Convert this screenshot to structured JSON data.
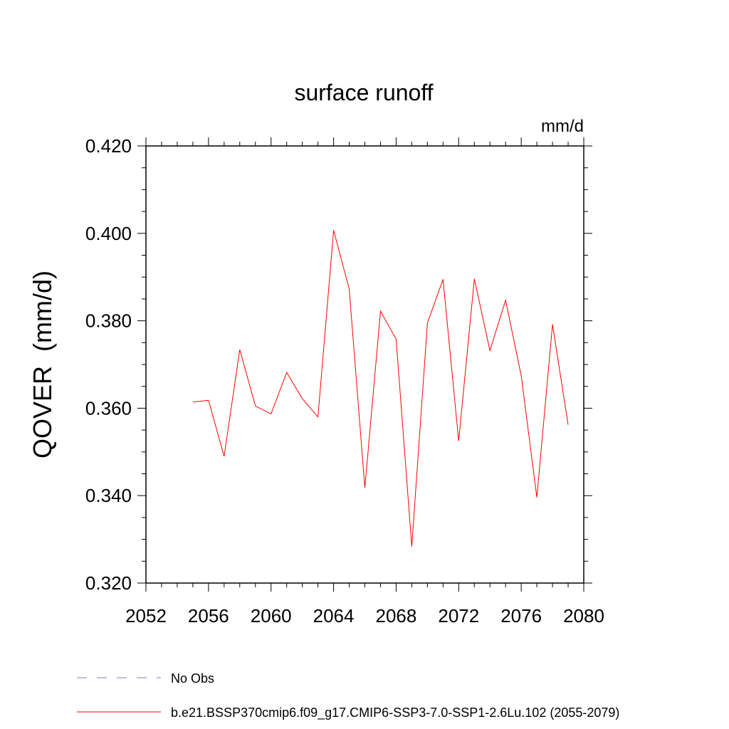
{
  "chart_data": {
    "type": "line",
    "title": "surface runoff",
    "units": "mm/d",
    "ylabel": "QOVER  (mm/d)",
    "xlabel": "",
    "xlim": [
      2052,
      2080
    ],
    "ylim": [
      0.32,
      0.42
    ],
    "x_ticks": [
      2052,
      2056,
      2060,
      2064,
      2068,
      2072,
      2076,
      2080
    ],
    "y_ticks": [
      "0.320",
      "0.340",
      "0.360",
      "0.380",
      "0.400",
      "0.420"
    ],
    "grid": false,
    "legend_position": "bottom",
    "series": [
      {
        "name": "b.e21.BSSP370cmip6.f09_g17.CMIP6-SSP3-7.0-SSP1-2.6Lu.102 (2055-2079)",
        "color": "#ff0000",
        "style": "solid",
        "x": [
          2055,
          2056,
          2057,
          2058,
          2059,
          2060,
          2061,
          2062,
          2063,
          2064,
          2065,
          2066,
          2067,
          2068,
          2069,
          2070,
          2071,
          2072,
          2073,
          2074,
          2075,
          2076,
          2077,
          2078,
          2079
        ],
        "values": [
          0.3614,
          0.3618,
          0.349,
          0.3734,
          0.3605,
          0.3587,
          0.3682,
          0.3622,
          0.358,
          0.4007,
          0.3873,
          0.3418,
          0.3822,
          0.3758,
          0.3284,
          0.3795,
          0.3895,
          0.3525,
          0.3896,
          0.3732,
          0.3847,
          0.3675,
          0.3396,
          0.3792,
          0.3562
        ]
      }
    ],
    "legend": [
      {
        "label": "No Obs",
        "color": "#7f7fbf",
        "style": "dashed"
      },
      {
        "label": "b.e21.BSSP370cmip6.f09_g17.CMIP6-SSP3-7.0-SSP1-2.6Lu.102 (2055-2079)",
        "color": "#ff0000",
        "style": "solid"
      }
    ]
  }
}
